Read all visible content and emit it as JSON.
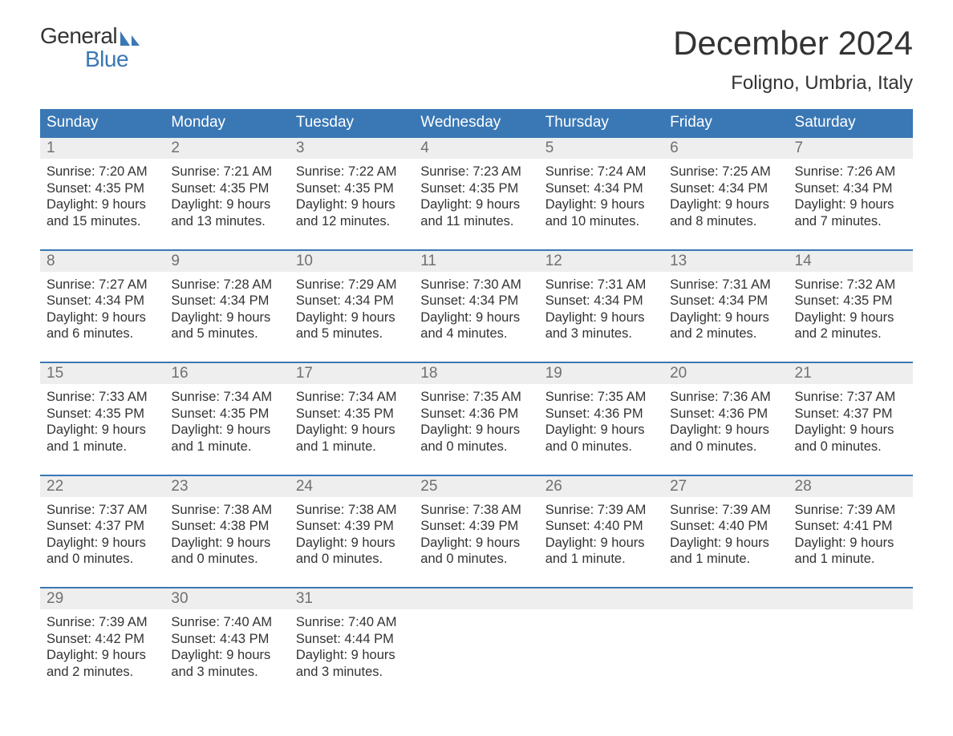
{
  "logo": {
    "word1": "General",
    "word2": "Blue",
    "accent_color": "#3a78b5",
    "text_color": "#333333"
  },
  "title": "December 2024",
  "location": "Foligno, Umbria, Italy",
  "colors": {
    "header_bg": "#3a78b5",
    "header_fg": "#ffffff",
    "daynum_bg": "#eeeeee",
    "daynum_fg": "#707070",
    "body_fg": "#333333",
    "row_border": "#3a78b5",
    "page_bg": "#ffffff"
  },
  "fonts": {
    "title_pt": 42,
    "location_pt": 24,
    "header_pt": 19,
    "daynum_pt": 19,
    "body_pt": 16.5
  },
  "layout": {
    "cols": 7,
    "rows": 5
  },
  "headers": [
    "Sunday",
    "Monday",
    "Tuesday",
    "Wednesday",
    "Thursday",
    "Friday",
    "Saturday"
  ],
  "weeks": [
    [
      {
        "d": "1",
        "sr": "7:20 AM",
        "ss": "4:35 PM",
        "dl": "9 hours and 15 minutes."
      },
      {
        "d": "2",
        "sr": "7:21 AM",
        "ss": "4:35 PM",
        "dl": "9 hours and 13 minutes."
      },
      {
        "d": "3",
        "sr": "7:22 AM",
        "ss": "4:35 PM",
        "dl": "9 hours and 12 minutes."
      },
      {
        "d": "4",
        "sr": "7:23 AM",
        "ss": "4:35 PM",
        "dl": "9 hours and 11 minutes."
      },
      {
        "d": "5",
        "sr": "7:24 AM",
        "ss": "4:34 PM",
        "dl": "9 hours and 10 minutes."
      },
      {
        "d": "6",
        "sr": "7:25 AM",
        "ss": "4:34 PM",
        "dl": "9 hours and 8 minutes."
      },
      {
        "d": "7",
        "sr": "7:26 AM",
        "ss": "4:34 PM",
        "dl": "9 hours and 7 minutes."
      }
    ],
    [
      {
        "d": "8",
        "sr": "7:27 AM",
        "ss": "4:34 PM",
        "dl": "9 hours and 6 minutes."
      },
      {
        "d": "9",
        "sr": "7:28 AM",
        "ss": "4:34 PM",
        "dl": "9 hours and 5 minutes."
      },
      {
        "d": "10",
        "sr": "7:29 AM",
        "ss": "4:34 PM",
        "dl": "9 hours and 5 minutes."
      },
      {
        "d": "11",
        "sr": "7:30 AM",
        "ss": "4:34 PM",
        "dl": "9 hours and 4 minutes."
      },
      {
        "d": "12",
        "sr": "7:31 AM",
        "ss": "4:34 PM",
        "dl": "9 hours and 3 minutes."
      },
      {
        "d": "13",
        "sr": "7:31 AM",
        "ss": "4:34 PM",
        "dl": "9 hours and 2 minutes."
      },
      {
        "d": "14",
        "sr": "7:32 AM",
        "ss": "4:35 PM",
        "dl": "9 hours and 2 minutes."
      }
    ],
    [
      {
        "d": "15",
        "sr": "7:33 AM",
        "ss": "4:35 PM",
        "dl": "9 hours and 1 minute."
      },
      {
        "d": "16",
        "sr": "7:34 AM",
        "ss": "4:35 PM",
        "dl": "9 hours and 1 minute."
      },
      {
        "d": "17",
        "sr": "7:34 AM",
        "ss": "4:35 PM",
        "dl": "9 hours and 1 minute."
      },
      {
        "d": "18",
        "sr": "7:35 AM",
        "ss": "4:36 PM",
        "dl": "9 hours and 0 minutes."
      },
      {
        "d": "19",
        "sr": "7:35 AM",
        "ss": "4:36 PM",
        "dl": "9 hours and 0 minutes."
      },
      {
        "d": "20",
        "sr": "7:36 AM",
        "ss": "4:36 PM",
        "dl": "9 hours and 0 minutes."
      },
      {
        "d": "21",
        "sr": "7:37 AM",
        "ss": "4:37 PM",
        "dl": "9 hours and 0 minutes."
      }
    ],
    [
      {
        "d": "22",
        "sr": "7:37 AM",
        "ss": "4:37 PM",
        "dl": "9 hours and 0 minutes."
      },
      {
        "d": "23",
        "sr": "7:38 AM",
        "ss": "4:38 PM",
        "dl": "9 hours and 0 minutes."
      },
      {
        "d": "24",
        "sr": "7:38 AM",
        "ss": "4:39 PM",
        "dl": "9 hours and 0 minutes."
      },
      {
        "d": "25",
        "sr": "7:38 AM",
        "ss": "4:39 PM",
        "dl": "9 hours and 0 minutes."
      },
      {
        "d": "26",
        "sr": "7:39 AM",
        "ss": "4:40 PM",
        "dl": "9 hours and 1 minute."
      },
      {
        "d": "27",
        "sr": "7:39 AM",
        "ss": "4:40 PM",
        "dl": "9 hours and 1 minute."
      },
      {
        "d": "28",
        "sr": "7:39 AM",
        "ss": "4:41 PM",
        "dl": "9 hours and 1 minute."
      }
    ],
    [
      {
        "d": "29",
        "sr": "7:39 AM",
        "ss": "4:42 PM",
        "dl": "9 hours and 2 minutes."
      },
      {
        "d": "30",
        "sr": "7:40 AM",
        "ss": "4:43 PM",
        "dl": "9 hours and 3 minutes."
      },
      {
        "d": "31",
        "sr": "7:40 AM",
        "ss": "4:44 PM",
        "dl": "9 hours and 3 minutes."
      },
      null,
      null,
      null,
      null
    ]
  ],
  "labels": {
    "sunrise": "Sunrise: ",
    "sunset": "Sunset: ",
    "daylight": "Daylight: "
  }
}
